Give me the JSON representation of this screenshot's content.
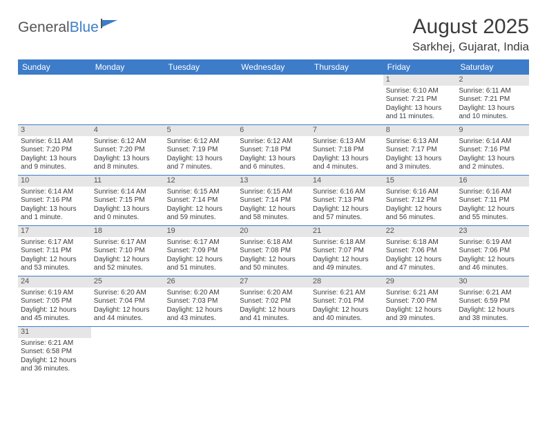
{
  "brand": {
    "part1": "General",
    "part2": "Blue"
  },
  "title": "August 2025",
  "location": "Sarkhej, Gujarat, India",
  "colors": {
    "header_bg": "#3d7cc9",
    "header_text": "#ffffff",
    "daynum_bg": "#e6e6e6",
    "text": "#3b3b3b",
    "row_border": "#3d7cc9",
    "page_bg": "#ffffff",
    "logo_gray": "#545454",
    "logo_blue": "#3d7cc9"
  },
  "typography": {
    "title_fontsize": 30,
    "location_fontsize": 17,
    "dayhead_fontsize": 12,
    "cell_fontsize": 10,
    "daynum_fontsize": 11
  },
  "day_names": [
    "Sunday",
    "Monday",
    "Tuesday",
    "Wednesday",
    "Thursday",
    "Friday",
    "Saturday"
  ],
  "weeks": [
    [
      null,
      null,
      null,
      null,
      null,
      {
        "n": "1",
        "sunrise": "Sunrise: 6:10 AM",
        "sunset": "Sunset: 7:21 PM",
        "daylight": "Daylight: 13 hours and 11 minutes."
      },
      {
        "n": "2",
        "sunrise": "Sunrise: 6:11 AM",
        "sunset": "Sunset: 7:21 PM",
        "daylight": "Daylight: 13 hours and 10 minutes."
      }
    ],
    [
      {
        "n": "3",
        "sunrise": "Sunrise: 6:11 AM",
        "sunset": "Sunset: 7:20 PM",
        "daylight": "Daylight: 13 hours and 9 minutes."
      },
      {
        "n": "4",
        "sunrise": "Sunrise: 6:12 AM",
        "sunset": "Sunset: 7:20 PM",
        "daylight": "Daylight: 13 hours and 8 minutes."
      },
      {
        "n": "5",
        "sunrise": "Sunrise: 6:12 AM",
        "sunset": "Sunset: 7:19 PM",
        "daylight": "Daylight: 13 hours and 7 minutes."
      },
      {
        "n": "6",
        "sunrise": "Sunrise: 6:12 AM",
        "sunset": "Sunset: 7:18 PM",
        "daylight": "Daylight: 13 hours and 6 minutes."
      },
      {
        "n": "7",
        "sunrise": "Sunrise: 6:13 AM",
        "sunset": "Sunset: 7:18 PM",
        "daylight": "Daylight: 13 hours and 4 minutes."
      },
      {
        "n": "8",
        "sunrise": "Sunrise: 6:13 AM",
        "sunset": "Sunset: 7:17 PM",
        "daylight": "Daylight: 13 hours and 3 minutes."
      },
      {
        "n": "9",
        "sunrise": "Sunrise: 6:14 AM",
        "sunset": "Sunset: 7:16 PM",
        "daylight": "Daylight: 13 hours and 2 minutes."
      }
    ],
    [
      {
        "n": "10",
        "sunrise": "Sunrise: 6:14 AM",
        "sunset": "Sunset: 7:16 PM",
        "daylight": "Daylight: 13 hours and 1 minute."
      },
      {
        "n": "11",
        "sunrise": "Sunrise: 6:14 AM",
        "sunset": "Sunset: 7:15 PM",
        "daylight": "Daylight: 13 hours and 0 minutes."
      },
      {
        "n": "12",
        "sunrise": "Sunrise: 6:15 AM",
        "sunset": "Sunset: 7:14 PM",
        "daylight": "Daylight: 12 hours and 59 minutes."
      },
      {
        "n": "13",
        "sunrise": "Sunrise: 6:15 AM",
        "sunset": "Sunset: 7:14 PM",
        "daylight": "Daylight: 12 hours and 58 minutes."
      },
      {
        "n": "14",
        "sunrise": "Sunrise: 6:16 AM",
        "sunset": "Sunset: 7:13 PM",
        "daylight": "Daylight: 12 hours and 57 minutes."
      },
      {
        "n": "15",
        "sunrise": "Sunrise: 6:16 AM",
        "sunset": "Sunset: 7:12 PM",
        "daylight": "Daylight: 12 hours and 56 minutes."
      },
      {
        "n": "16",
        "sunrise": "Sunrise: 6:16 AM",
        "sunset": "Sunset: 7:11 PM",
        "daylight": "Daylight: 12 hours and 55 minutes."
      }
    ],
    [
      {
        "n": "17",
        "sunrise": "Sunrise: 6:17 AM",
        "sunset": "Sunset: 7:11 PM",
        "daylight": "Daylight: 12 hours and 53 minutes."
      },
      {
        "n": "18",
        "sunrise": "Sunrise: 6:17 AM",
        "sunset": "Sunset: 7:10 PM",
        "daylight": "Daylight: 12 hours and 52 minutes."
      },
      {
        "n": "19",
        "sunrise": "Sunrise: 6:17 AM",
        "sunset": "Sunset: 7:09 PM",
        "daylight": "Daylight: 12 hours and 51 minutes."
      },
      {
        "n": "20",
        "sunrise": "Sunrise: 6:18 AM",
        "sunset": "Sunset: 7:08 PM",
        "daylight": "Daylight: 12 hours and 50 minutes."
      },
      {
        "n": "21",
        "sunrise": "Sunrise: 6:18 AM",
        "sunset": "Sunset: 7:07 PM",
        "daylight": "Daylight: 12 hours and 49 minutes."
      },
      {
        "n": "22",
        "sunrise": "Sunrise: 6:18 AM",
        "sunset": "Sunset: 7:06 PM",
        "daylight": "Daylight: 12 hours and 47 minutes."
      },
      {
        "n": "23",
        "sunrise": "Sunrise: 6:19 AM",
        "sunset": "Sunset: 7:06 PM",
        "daylight": "Daylight: 12 hours and 46 minutes."
      }
    ],
    [
      {
        "n": "24",
        "sunrise": "Sunrise: 6:19 AM",
        "sunset": "Sunset: 7:05 PM",
        "daylight": "Daylight: 12 hours and 45 minutes."
      },
      {
        "n": "25",
        "sunrise": "Sunrise: 6:20 AM",
        "sunset": "Sunset: 7:04 PM",
        "daylight": "Daylight: 12 hours and 44 minutes."
      },
      {
        "n": "26",
        "sunrise": "Sunrise: 6:20 AM",
        "sunset": "Sunset: 7:03 PM",
        "daylight": "Daylight: 12 hours and 43 minutes."
      },
      {
        "n": "27",
        "sunrise": "Sunrise: 6:20 AM",
        "sunset": "Sunset: 7:02 PM",
        "daylight": "Daylight: 12 hours and 41 minutes."
      },
      {
        "n": "28",
        "sunrise": "Sunrise: 6:21 AM",
        "sunset": "Sunset: 7:01 PM",
        "daylight": "Daylight: 12 hours and 40 minutes."
      },
      {
        "n": "29",
        "sunrise": "Sunrise: 6:21 AM",
        "sunset": "Sunset: 7:00 PM",
        "daylight": "Daylight: 12 hours and 39 minutes."
      },
      {
        "n": "30",
        "sunrise": "Sunrise: 6:21 AM",
        "sunset": "Sunset: 6:59 PM",
        "daylight": "Daylight: 12 hours and 38 minutes."
      }
    ],
    [
      {
        "n": "31",
        "sunrise": "Sunrise: 6:21 AM",
        "sunset": "Sunset: 6:58 PM",
        "daylight": "Daylight: 12 hours and 36 minutes."
      },
      null,
      null,
      null,
      null,
      null,
      null
    ]
  ]
}
